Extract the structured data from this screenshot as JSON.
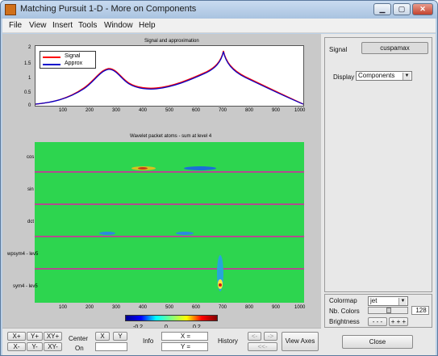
{
  "window": {
    "title": "Matching Pursuit 1-D - More on Components",
    "controls": {
      "minimize": "▁",
      "maximize": "▢",
      "close": "✕"
    }
  },
  "menu": [
    "File",
    "View",
    "Insert",
    "Tools",
    "Window",
    "Help"
  ],
  "top_plot": {
    "title": "Signal and approximation",
    "legend": [
      "Signal",
      "Approx"
    ],
    "legend_colors": [
      "#ff0000",
      "#0000cc"
    ],
    "y_ticks": [
      "2",
      "1.5",
      "1",
      "0.5",
      "0"
    ],
    "x_ticks": [
      "100",
      "200",
      "300",
      "400",
      "500",
      "600",
      "700",
      "800",
      "900",
      "1000"
    ]
  },
  "bottom_plot": {
    "title": "Wavelet packet atoms - sum at level 4",
    "row_labels": [
      "cos",
      "sin",
      "dct",
      "wpsym4 - lev5",
      "sym4 - lev5"
    ],
    "x_ticks": [
      "100",
      "200",
      "300",
      "400",
      "500",
      "600",
      "700",
      "800",
      "900",
      "1000"
    ],
    "colorbar_ticks": [
      "-0.2",
      "0",
      "0.2"
    ]
  },
  "side_panel": {
    "signal_label": "Signal",
    "signal_value": "cuspamax",
    "display_label": "Display",
    "display_value": "Components",
    "colormap_label": "Colormap",
    "colormap_value": "jet",
    "ncolors_label": "Nb. Colors",
    "ncolors_value": "128",
    "ncolors_fraction": 0.5,
    "brightness_label": "Brightness",
    "brightness_minus": "- - -",
    "brightness_plus": "+ + +",
    "close_label": "Close"
  },
  "bottom_bar": {
    "x_plus": "X+",
    "y_plus": "Y+",
    "xy_plus": "XY+",
    "x_minus": "X-",
    "y_minus": "Y-",
    "xy_minus": "XY-",
    "center_label": "Center",
    "center_on_label": "On",
    "center_x": "X",
    "center_y": "Y",
    "info_label": "Info",
    "info_x": "X =",
    "info_y": "Y =",
    "history_label": "History",
    "history_back": "<-",
    "history_forward": "->",
    "history_reset": "<<-",
    "view_axes": "View Axes"
  }
}
